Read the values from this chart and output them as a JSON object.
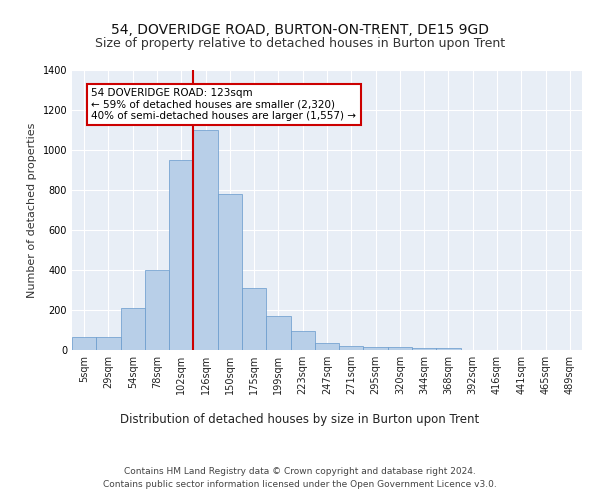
{
  "title_line1": "54, DOVERIDGE ROAD, BURTON-ON-TRENT, DE15 9GD",
  "title_line2": "Size of property relative to detached houses in Burton upon Trent",
  "xlabel": "Distribution of detached houses by size in Burton upon Trent",
  "ylabel": "Number of detached properties",
  "footnote1": "Contains HM Land Registry data © Crown copyright and database right 2024.",
  "footnote2": "Contains public sector information licensed under the Open Government Licence v3.0.",
  "categories": [
    "5sqm",
    "29sqm",
    "54sqm",
    "78sqm",
    "102sqm",
    "126sqm",
    "150sqm",
    "175sqm",
    "199sqm",
    "223sqm",
    "247sqm",
    "271sqm",
    "295sqm",
    "320sqm",
    "344sqm",
    "368sqm",
    "392sqm",
    "416sqm",
    "441sqm",
    "465sqm",
    "489sqm"
  ],
  "bar_values": [
    65,
    65,
    210,
    400,
    950,
    1100,
    780,
    310,
    170,
    95,
    35,
    20,
    15,
    13,
    10,
    12,
    0,
    0,
    0,
    0,
    0
  ],
  "bar_color": "#b8cfe8",
  "bar_edge_color": "#6699cc",
  "vline_x": 4.5,
  "vline_color": "#cc0000",
  "annotation_text": "54 DOVERIDGE ROAD: 123sqm\n← 59% of detached houses are smaller (2,320)\n40% of semi-detached houses are larger (1,557) →",
  "annotation_box_color": "#ffffff",
  "annotation_box_edge": "#cc0000",
  "ylim": [
    0,
    1400
  ],
  "yticks": [
    0,
    200,
    400,
    600,
    800,
    1000,
    1200,
    1400
  ],
  "background_color": "#e8eef6",
  "grid_color": "#ffffff",
  "title_fontsize": 10,
  "subtitle_fontsize": 9,
  "tick_fontsize": 7,
  "ylabel_fontsize": 8,
  "xlabel_fontsize": 8.5,
  "annotation_fontsize": 7.5,
  "footnote_fontsize": 6.5
}
